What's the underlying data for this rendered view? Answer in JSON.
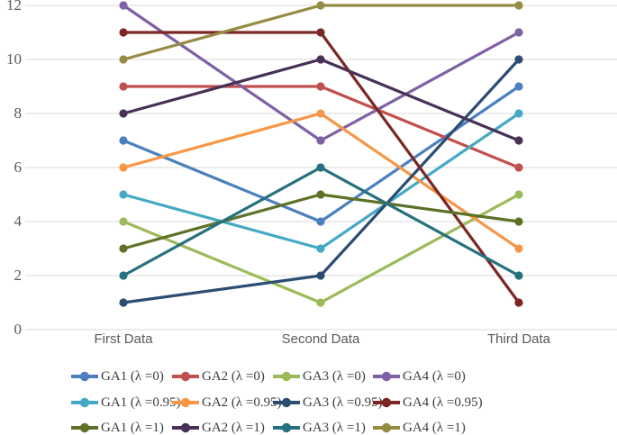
{
  "chart_data": {
    "type": "line",
    "title": "",
    "xlabel": "",
    "ylabel": "",
    "categories": [
      "First Data",
      "Second Data",
      "Third Data"
    ],
    "series": [
      {
        "name": "GA1 (λ =0)",
        "color": "#4C7FBE",
        "values": [
          7,
          4,
          9
        ]
      },
      {
        "name": "GA2 (λ =0)",
        "color": "#C0504D",
        "values": [
          9,
          9,
          6
        ]
      },
      {
        "name": "GA3 (λ =0)",
        "color": "#9BBB59",
        "values": [
          4,
          1,
          5
        ]
      },
      {
        "name": "GA4 (λ =0)",
        "color": "#7E60A5",
        "values": [
          12,
          7,
          11
        ]
      },
      {
        "name": "GA1 (λ =0.95)",
        "color": "#45A9C5",
        "values": [
          5,
          3,
          8
        ]
      },
      {
        "name": "GA2 (λ =0.95)",
        "color": "#F79646",
        "values": [
          6,
          8,
          3
        ]
      },
      {
        "name": "GA3 (λ =0.95)",
        "color": "#2B4D72",
        "values": [
          1,
          2,
          10
        ]
      },
      {
        "name": "GA4 (λ =0.95)",
        "color": "#7B2724",
        "values": [
          11,
          11,
          1
        ]
      },
      {
        "name": "GA1 (λ =1)",
        "color": "#5E7227",
        "values": [
          3,
          5,
          4
        ]
      },
      {
        "name": "GA2 (λ =1)",
        "color": "#473156",
        "values": [
          8,
          10,
          7
        ]
      },
      {
        "name": "GA3 (λ =1)",
        "color": "#26707F",
        "values": [
          2,
          6,
          2
        ]
      },
      {
        "name": "GA4 (λ =1)",
        "color": "#958C44",
        "values": [
          10,
          12,
          12
        ]
      }
    ],
    "yticks": [
      0,
      2,
      4,
      6,
      8,
      10,
      12
    ],
    "ylim": [
      0,
      12
    ],
    "grid": true,
    "legend_position": "bottom",
    "legend_rows": 3,
    "legend_cols": 4
  },
  "colors": {
    "background": "#FFFFFF",
    "gridline": "#D9D9D9",
    "y_tick_label": "#595959",
    "x_tick_label": "#595959",
    "legend_text": "#3D3D3D"
  }
}
